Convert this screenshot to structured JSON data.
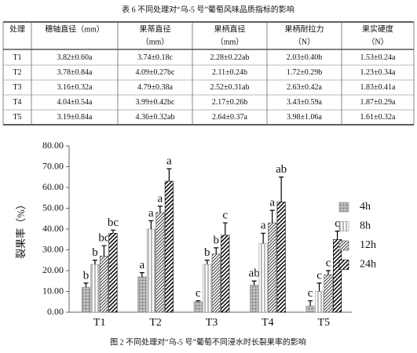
{
  "table": {
    "caption": "表 6 不同处理对“乌-5 号”葡萄风味品质指标的影响",
    "header": [
      [
        "处理"
      ],
      [
        "穗轴直径（mm）"
      ],
      [
        "果蒂直径",
        "（mm）"
      ],
      [
        "果柄直径",
        "（mm）"
      ],
      [
        "果柄耐拉力",
        "（N）"
      ],
      [
        "果实硬度",
        "（N）"
      ]
    ],
    "rows": [
      [
        "T1",
        "3.82±0.60a",
        "3.74±0.18c",
        "2.28±0.22ab",
        "2.03±0.40b",
        "1.53±0.24a"
      ],
      [
        "T2",
        "3.78±0.84a",
        "4.09±0.27bc",
        "2.11±0.24b",
        "1.72±0.29b",
        "1.23±0.34a"
      ],
      [
        "T3",
        "3.16±0.32a",
        "4.79±0.38a",
        "2.52±0.31ab",
        "2.63±0.42a",
        "1.83±0.41a"
      ],
      [
        "T4",
        "4.04±0.54a",
        "3.99±0.42bc",
        "2.17±0.26b",
        "3.43±0.59a",
        "1.87±0.29a"
      ],
      [
        "T5",
        "3.19±0.84a",
        "4.36±0.32ab",
        "2.64±0.37a",
        "3.98±1.06a",
        "1.61±0.32a"
      ]
    ]
  },
  "chart_data": {
    "type": "bar",
    "y_label": "裂果率（%）",
    "categories": [
      "T1",
      "T2",
      "T3",
      "T4",
      "T5"
    ],
    "ylim": [
      0,
      80
    ],
    "yticks": [
      {
        "value": 0,
        "label": "0.00"
      },
      {
        "value": 10,
        "label": "10.00"
      },
      {
        "value": 20,
        "label": "20.00"
      },
      {
        "value": 30,
        "label": "30.00"
      },
      {
        "value": 40,
        "label": "40.00"
      },
      {
        "value": 50,
        "label": "50.00"
      },
      {
        "value": 60,
        "label": "60.00"
      },
      {
        "value": 70,
        "label": "70.00"
      },
      {
        "value": 80,
        "label": "80.00"
      }
    ],
    "legend": "right",
    "series": [
      {
        "name": "4h",
        "color": "#8c8c8c",
        "pattern": "dots",
        "values": [
          12,
          17,
          5,
          13,
          3
        ],
        "errors": [
          2,
          2,
          0.5,
          2,
          2.5
        ],
        "letters": [
          "b",
          "a",
          "c",
          "ab",
          "c"
        ]
      },
      {
        "name": "8h",
        "color": "#8c8c8c",
        "pattern": "vertical",
        "values": [
          23,
          40,
          23,
          33,
          10
        ],
        "errors": [
          2,
          4,
          2,
          5,
          4
        ],
        "letters": [
          "b",
          "a",
          "b",
          "a",
          "c"
        ]
      },
      {
        "name": "12h",
        "color": "#555555",
        "pattern": "fine",
        "values": [
          27,
          48,
          28,
          43,
          18
        ],
        "errors": [
          5,
          3,
          3,
          6,
          2
        ],
        "letters": [
          "bc",
          "a",
          "b",
          "a",
          "c"
        ]
      },
      {
        "name": "24h",
        "color": "#000000",
        "pattern": "diagonal",
        "values": [
          38,
          63,
          37,
          53,
          35
        ],
        "errors": [
          1.5,
          6,
          6,
          12,
          4
        ],
        "letters": [
          "bc",
          "a",
          "c",
          "ab",
          "c"
        ]
      }
    ]
  },
  "figure_caption": "图 2 不同处理对“乌-5 号”葡萄不同浸水时长裂果率的影响"
}
